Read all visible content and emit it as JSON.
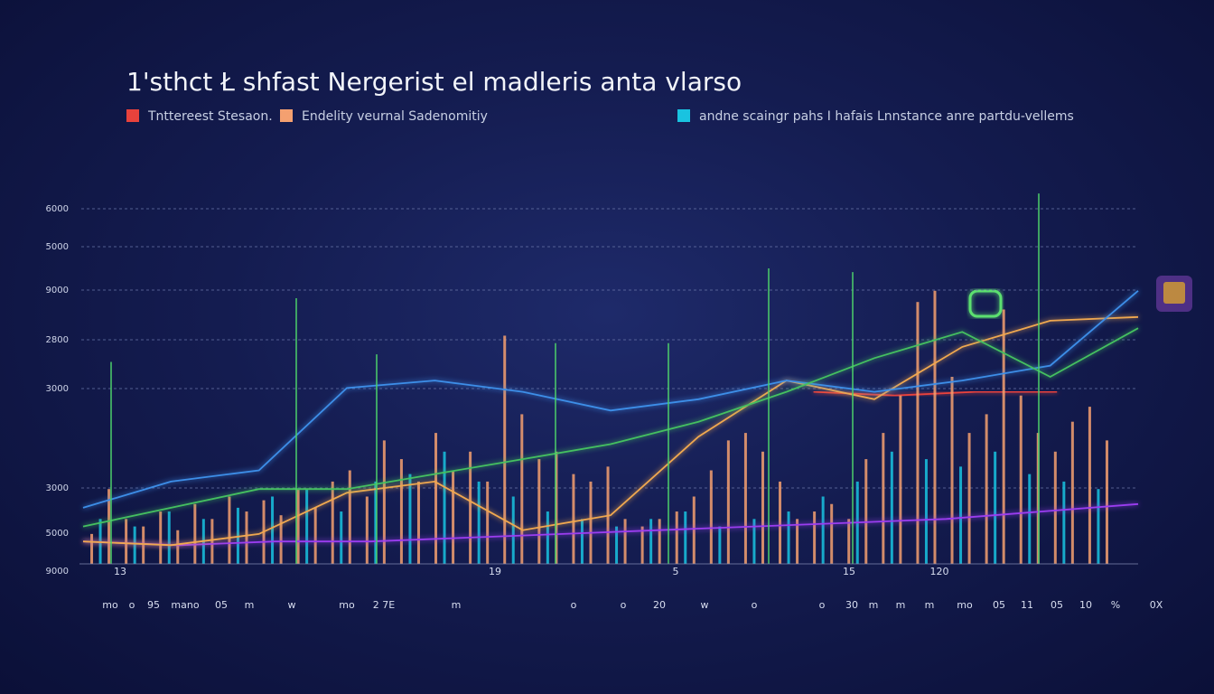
{
  "chart_data": {
    "type": "bar",
    "title": "1'sthct Ł shfast Nergerist el madleris anta vlarso",
    "ylim": [
      0,
      100
    ],
    "y_axis_labels": [
      "6000",
      "5000",
      "9000",
      "2800",
      "3000",
      "3000",
      "5000",
      "9000"
    ],
    "x_labels_top": [
      "13",
      "19",
      "5",
      "15",
      "120"
    ],
    "x_labels_bottom": [
      "mo",
      "o",
      "95",
      "mano",
      "05",
      "m",
      "w",
      "mo",
      "2 7E",
      "m",
      "o",
      "o",
      "20",
      "w",
      "o",
      "o",
      "30",
      "m",
      "m",
      "m",
      "mo",
      "05",
      "11",
      "05",
      "10",
      "%",
      "0X"
    ],
    "grid": true,
    "series": [
      {
        "name": "Tnttereest Stesaon.",
        "color": "#e8423c",
        "kind": "line",
        "values": [
          null,
          null,
          null,
          null,
          null,
          null,
          null,
          null,
          null,
          46,
          45,
          46,
          46,
          null
        ]
      },
      {
        "name": "Endelity veurnal Sadenomitiy",
        "color": "#f4a070",
        "kind": "bar",
        "values": [
          8,
          20,
          12,
          10,
          14,
          9,
          16,
          12,
          18,
          14,
          17,
          13,
          20,
          15,
          22,
          25,
          18,
          33,
          28,
          22,
          35,
          25,
          30,
          22,
          61,
          40,
          28,
          30,
          24,
          22,
          26,
          12,
          10,
          12,
          14,
          18,
          25,
          33,
          35,
          30,
          22,
          12,
          14,
          16,
          12,
          28,
          35,
          45,
          70,
          73,
          50,
          35,
          40,
          68,
          45,
          35,
          30,
          38,
          42,
          33
        ]
      },
      {
        "name": "andne scaingr pahs I hafais Lnnstance anre partdu-vellems",
        "color": "#19c3e0",
        "kind": "bar",
        "values": [
          12,
          10,
          14,
          12,
          15,
          18,
          20,
          14,
          22,
          24,
          30,
          22,
          18,
          14,
          12,
          10,
          12,
          14,
          10,
          12,
          14,
          18,
          22,
          30,
          28,
          26,
          30,
          24,
          22,
          20
        ]
      },
      {
        "color": "#9b3cf0",
        "kind": "line",
        "values": [
          6,
          5,
          6,
          6,
          7,
          8,
          9,
          10,
          11,
          12,
          14,
          16
        ]
      },
      {
        "color": "#f0a850",
        "kind": "line",
        "values": [
          6,
          5,
          8,
          19,
          22,
          9,
          13,
          34,
          49,
          44,
          58,
          65,
          66
        ]
      },
      {
        "color": "#3c8ee8",
        "kind": "line",
        "values": [
          15,
          22,
          25,
          47,
          49,
          46,
          41,
          44,
          49,
          46,
          49,
          53,
          73
        ]
      },
      {
        "color": "#44c060",
        "kind": "line",
        "values": [
          10,
          15,
          20,
          20,
          24,
          28,
          32,
          38,
          46,
          55,
          62,
          50,
          63
        ]
      },
      {
        "color": "#4ccf6a",
        "kind": "spike",
        "values": [
          54,
          71,
          56,
          59,
          59,
          79,
          78,
          99
        ]
      }
    ]
  }
}
